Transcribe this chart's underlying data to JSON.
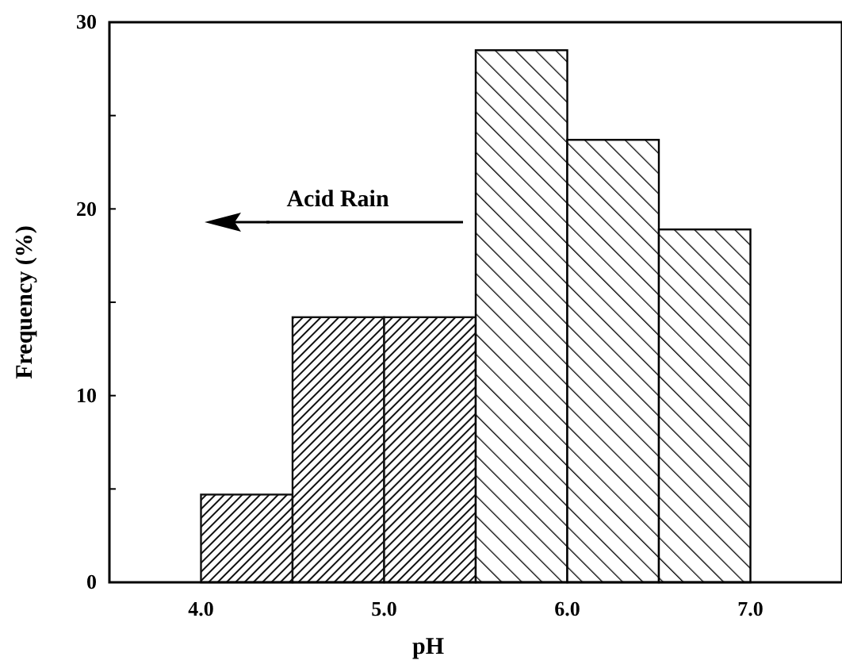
{
  "chart_data": {
    "type": "histogram",
    "xlabel": "pH",
    "ylabel": "Frequency (%)",
    "bins": [
      4.0,
      4.5,
      5.0,
      5.5,
      6.0,
      6.5,
      7.0
    ],
    "values": [
      4.7,
      14.2,
      14.2,
      28.5,
      23.7,
      18.9
    ],
    "colors": [
      "#111111",
      "#111111",
      "#111111",
      "#000000",
      "#000000",
      "#000000"
    ],
    "xlim": [
      3.5,
      7.5
    ],
    "xticks": [
      {
        "value": 4,
        "label": "4.0"
      },
      {
        "value": 5,
        "label": "5.0"
      },
      {
        "value": 6,
        "label": "6.0"
      },
      {
        "value": 7,
        "label": "7.0"
      }
    ],
    "ylim": [
      0,
      30
    ],
    "yticks": [
      0,
      {
        "value": 5,
        "label": null
      },
      10,
      {
        "value": 15,
        "label": null
      },
      20,
      {
        "value": 25,
        "label": null
      },
      30
    ],
    "annotations": [
      "Acid Rain"
    ]
  }
}
